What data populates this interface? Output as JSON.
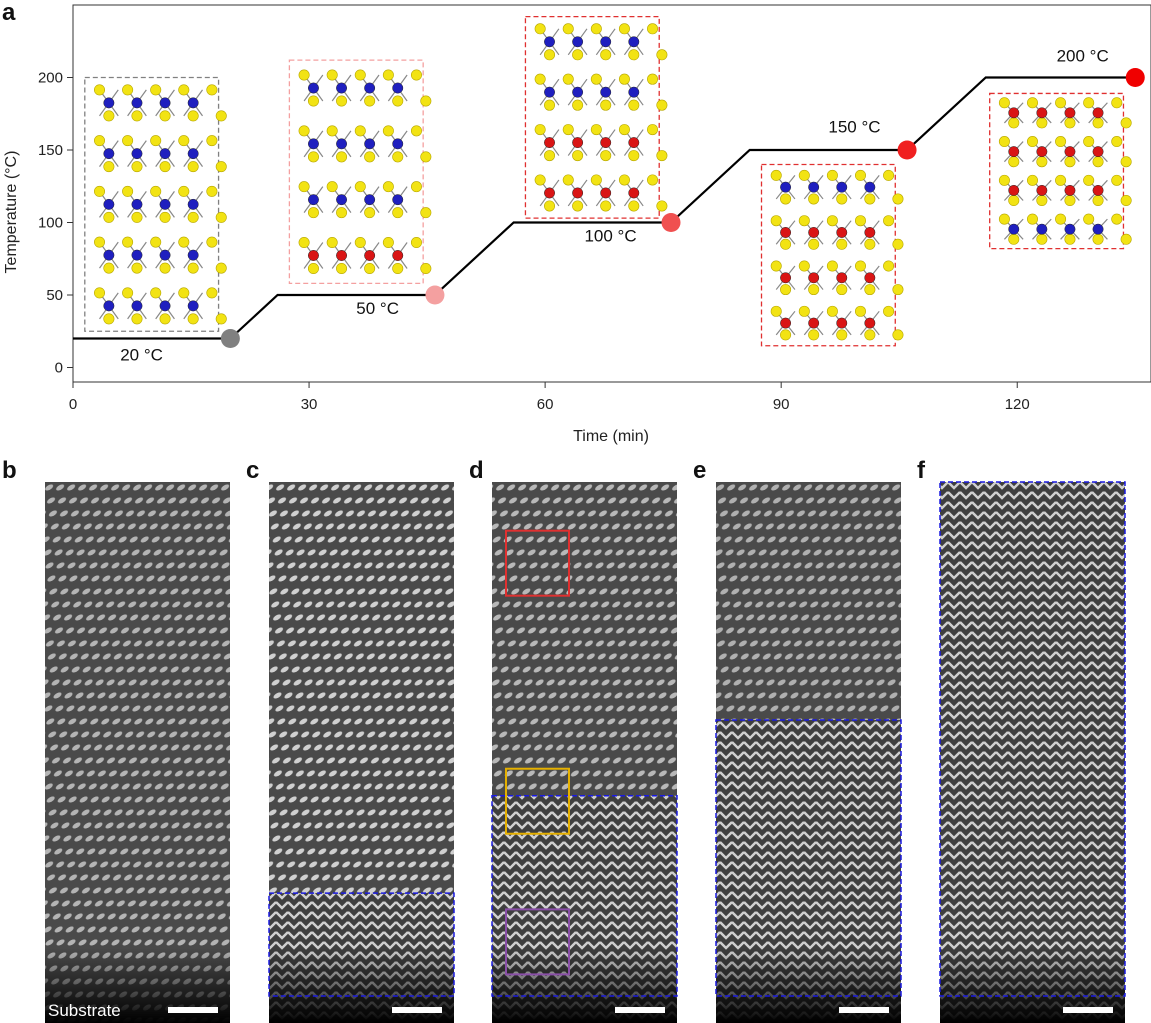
{
  "figure": {
    "panel_letters": [
      "a",
      "b",
      "c",
      "d",
      "e",
      "f"
    ],
    "substrate_label": "Substrate"
  },
  "chart_data": {
    "type": "line",
    "xlabel": "Time (min)",
    "ylabel": "Temperature (°C)",
    "xlim": [
      0,
      137
    ],
    "ylim": [
      -10,
      250
    ],
    "x_ticks": [
      0,
      30,
      60,
      90,
      120
    ],
    "y_ticks": [
      0,
      50,
      100,
      150,
      200
    ],
    "grid": false,
    "series": [
      {
        "x": [
          0,
          20,
          26,
          46,
          56,
          76,
          86,
          106,
          116,
          135
        ],
        "y": [
          20,
          20,
          50,
          50,
          100,
          100,
          150,
          150,
          200,
          200
        ],
        "color": "#000000"
      }
    ],
    "points": [
      {
        "x": 20,
        "y": 20,
        "color": "#808080"
      },
      {
        "x": 46,
        "y": 50,
        "color": "#f4a0a0"
      },
      {
        "x": 76,
        "y": 100,
        "color": "#f05050"
      },
      {
        "x": 106,
        "y": 150,
        "color": "#f02020"
      },
      {
        "x": 135,
        "y": 200,
        "color": "#f00000"
      }
    ],
    "annotations": [
      {
        "text": "20 °C",
        "x": 6,
        "y": 5
      },
      {
        "text": "50 °C",
        "x": 36,
        "y": 37
      },
      {
        "text": "100 °C",
        "x": 65,
        "y": 87
      },
      {
        "text": "150 °C",
        "x": 96,
        "y": 162
      },
      {
        "text": "200 °C",
        "x": 125,
        "y": 211
      }
    ],
    "insets": [
      {
        "xr": [
          1.5,
          18.5
        ],
        "yr": [
          25,
          200
        ],
        "layers": [
          "b",
          "b",
          "b",
          "b",
          "b"
        ],
        "box": "#808080"
      },
      {
        "xr": [
          27.5,
          44.5
        ],
        "yr": [
          58,
          212
        ],
        "layers": [
          "b",
          "b",
          "b",
          "r"
        ],
        "box": "#f4a0a0"
      },
      {
        "xr": [
          57.5,
          74.5
        ],
        "yr": [
          103,
          242
        ],
        "layers": [
          "b",
          "b",
          "r",
          "r"
        ],
        "box": "#e03030"
      },
      {
        "xr": [
          87.5,
          104.5
        ],
        "yr": [
          15,
          140
        ],
        "layers": [
          "b",
          "r",
          "r",
          "r"
        ],
        "box": "#e03030"
      },
      {
        "xr": [
          116.5,
          133.5
        ],
        "yr": [
          82,
          189
        ],
        "layers": [
          "r",
          "r",
          "r",
          "b"
        ],
        "box": "#e03030"
      }
    ],
    "atom_colors": {
      "s": "#f2e313",
      "b": "#1f1fbf",
      "r": "#d91515"
    }
  },
  "micrographs": [
    {
      "stripe": "#b4b4b4",
      "interface": null
    },
    {
      "stripe": "#d0d0d0",
      "interface": 0.76
    },
    {
      "stripe": "#b8b8b8",
      "interface": 0.58,
      "boxes": [
        {
          "color": "#e03030",
          "y": 0.09
        },
        {
          "color": "#e5b000",
          "y": 0.53
        },
        {
          "color": "#8a4fa8",
          "y": 0.79
        }
      ]
    },
    {
      "stripe": "#b0b0b0",
      "interface": 0.44
    },
    {
      "stripe": "#d6d6d6",
      "interface": 0.0
    }
  ],
  "colors": {
    "dashed_interface": "#1a1ae0",
    "scalebar": "#ffffff"
  }
}
